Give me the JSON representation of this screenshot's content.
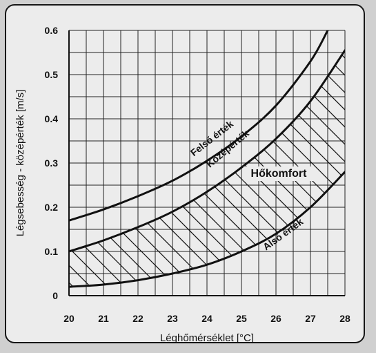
{
  "chart_data": {
    "type": "line",
    "xlabel": "Léghőmérséklet [°C]",
    "ylabel": "Légsebesség - középérték [m/s]",
    "xlim": [
      20,
      28
    ],
    "ylim": [
      0,
      0.6
    ],
    "grid": true,
    "x_ticks": [
      "20",
      "21",
      "22",
      "23",
      "24",
      "25",
      "26",
      "27",
      "28"
    ],
    "y_ticks": [
      "0",
      "0.1",
      "0.2",
      "0.3",
      "0.4",
      "0.5",
      "0.6"
    ],
    "series": [
      {
        "name": "Felső érték",
        "x": [
          20,
          21,
          22,
          23,
          24,
          25,
          26,
          27,
          27.5
        ],
        "y": [
          0.17,
          0.195,
          0.225,
          0.26,
          0.305,
          0.36,
          0.43,
          0.53,
          0.6
        ]
      },
      {
        "name": "Középérték",
        "x": [
          20,
          21,
          22,
          23,
          24,
          25,
          26,
          27,
          28
        ],
        "y": [
          0.1,
          0.125,
          0.155,
          0.19,
          0.235,
          0.29,
          0.355,
          0.44,
          0.555
        ]
      },
      {
        "name": "Alsó érték",
        "x": [
          20,
          21,
          22,
          23,
          24,
          25,
          26,
          27,
          28
        ],
        "y": [
          0.02,
          0.025,
          0.035,
          0.05,
          0.07,
          0.1,
          0.14,
          0.2,
          0.28
        ]
      }
    ],
    "region": {
      "name": "Hőkomfort",
      "between": [
        "Középérték",
        "Alsó érték"
      ],
      "fill": "hatched"
    }
  },
  "colors": {
    "background": "#d0d0d0",
    "panel": "#ececec",
    "ink": "#111111"
  }
}
